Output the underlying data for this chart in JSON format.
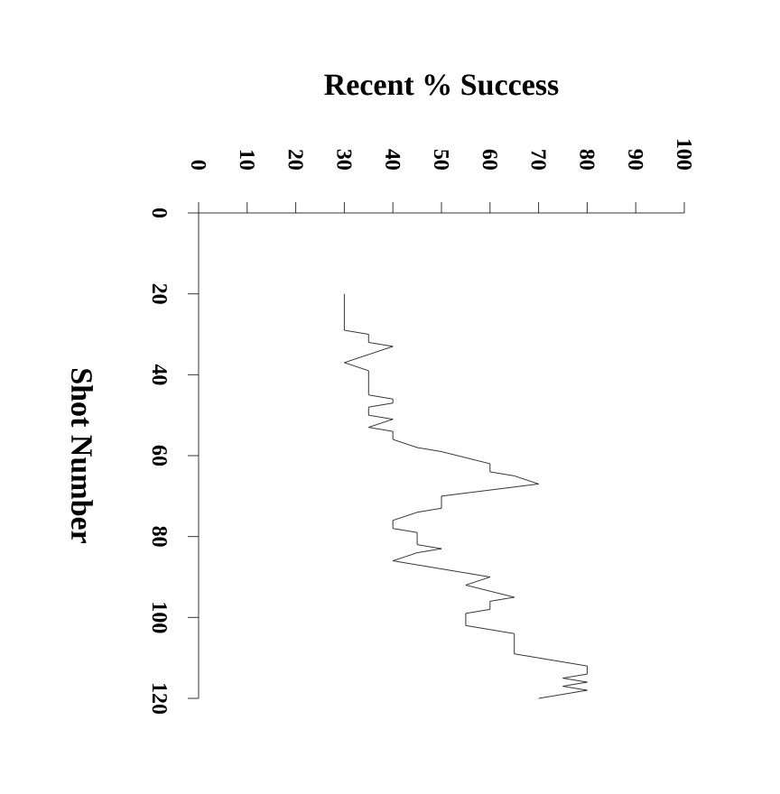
{
  "chart_data": {
    "type": "line",
    "xlabel": "Recent % Success",
    "ylabel": "Shot Number",
    "x": [
      30,
      30,
      35,
      35,
      40,
      35,
      30,
      35,
      35,
      40,
      40,
      35,
      35,
      40,
      35,
      40,
      40,
      45,
      50,
      60,
      60,
      65,
      70,
      50,
      50,
      45,
      40,
      40,
      45,
      45,
      50,
      45,
      40,
      60,
      55,
      65,
      60,
      60,
      55,
      55,
      60,
      65,
      65,
      80,
      80,
      75,
      80,
      75,
      80,
      70
    ],
    "values": [
      20,
      29,
      30,
      32,
      33,
      35,
      37,
      39,
      45,
      46,
      47,
      48,
      50,
      51,
      53,
      54,
      56,
      58,
      59,
      62,
      64,
      65,
      67,
      70,
      73,
      74,
      76,
      78,
      79,
      82,
      83,
      84,
      86,
      90,
      92,
      95,
      96,
      98,
      99,
      102,
      103,
      104,
      109,
      112,
      114,
      115,
      116,
      117,
      118,
      120
    ],
    "color": "#000000",
    "line_style": "solid",
    "xlim": [
      0,
      100
    ],
    "ylim": [
      120,
      0
    ],
    "xticks": [
      0,
      10,
      20,
      30,
      40,
      50,
      60,
      70,
      80,
      90,
      100
    ],
    "yticks": [
      0,
      20,
      40,
      60,
      80,
      100,
      120
    ],
    "grid": false
  }
}
